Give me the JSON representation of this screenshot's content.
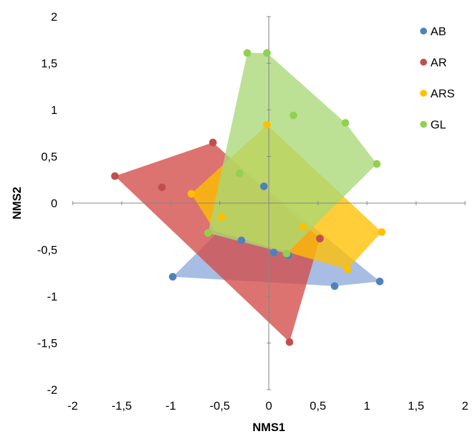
{
  "chart_data": {
    "type": "scatter",
    "xlabel": "NMS1",
    "ylabel": "NMS2",
    "xlim": [
      -2,
      2
    ],
    "ylim": [
      -2,
      2
    ],
    "xticks": [
      "-2",
      "-1,5",
      "-1",
      "-0,5",
      "0",
      "0,5",
      "1",
      "1,5",
      "2"
    ],
    "yticks": [
      "2",
      "1,5",
      "1",
      "0,5",
      "0",
      "-0,5",
      "-1",
      "-1,5",
      "-2"
    ],
    "legend_position": "top-right",
    "series": [
      {
        "name": "AB",
        "color": "#4f81bd",
        "fill": "#8eaadb",
        "points": [
          [
            -0.98,
            -0.79
          ],
          [
            0.67,
            -0.89
          ],
          [
            1.13,
            -0.84
          ],
          [
            -0.05,
            0.18
          ],
          [
            -0.28,
            -0.4
          ],
          [
            0.05,
            -0.53
          ],
          [
            0.2,
            -0.56
          ]
        ],
        "hull": [
          [
            -0.98,
            -0.79
          ],
          [
            -0.05,
            0.18
          ],
          [
            1.13,
            -0.84
          ],
          [
            0.67,
            -0.89
          ]
        ]
      },
      {
        "name": "AR",
        "color": "#c0504d",
        "fill": "#d24b48",
        "points": [
          [
            -1.57,
            0.29
          ],
          [
            -1.09,
            0.17
          ],
          [
            -0.57,
            0.65
          ],
          [
            0.21,
            -1.49
          ],
          [
            0.52,
            -0.38
          ]
        ],
        "hull": [
          [
            -1.57,
            0.29
          ],
          [
            -0.57,
            0.65
          ],
          [
            0.52,
            -0.38
          ],
          [
            0.21,
            -1.49
          ]
        ]
      },
      {
        "name": "ARS",
        "color": "#ffc000",
        "fill": "#ffc000",
        "points": [
          [
            -0.79,
            0.1
          ],
          [
            -0.02,
            0.84
          ],
          [
            1.15,
            -0.31
          ],
          [
            0.8,
            -0.71
          ],
          [
            -0.48,
            -0.15
          ],
          [
            0.35,
            -0.25
          ]
        ],
        "hull": [
          [
            -0.79,
            0.1
          ],
          [
            -0.02,
            0.84
          ],
          [
            1.15,
            -0.31
          ],
          [
            0.8,
            -0.71
          ],
          [
            -0.55,
            -0.3
          ]
        ]
      },
      {
        "name": "GL",
        "color": "#92d050",
        "fill": "#a9d876",
        "points": [
          [
            -0.22,
            1.61
          ],
          [
            -0.02,
            1.61
          ],
          [
            0.25,
            0.94
          ],
          [
            0.78,
            0.86
          ],
          [
            1.1,
            0.42
          ],
          [
            -0.62,
            -0.32
          ],
          [
            0.18,
            -0.54
          ],
          [
            -0.3,
            0.32
          ]
        ],
        "hull": [
          [
            -0.22,
            1.61
          ],
          [
            -0.02,
            1.61
          ],
          [
            0.78,
            0.86
          ],
          [
            1.1,
            0.42
          ],
          [
            0.18,
            -0.54
          ],
          [
            -0.62,
            -0.32
          ]
        ]
      }
    ]
  }
}
